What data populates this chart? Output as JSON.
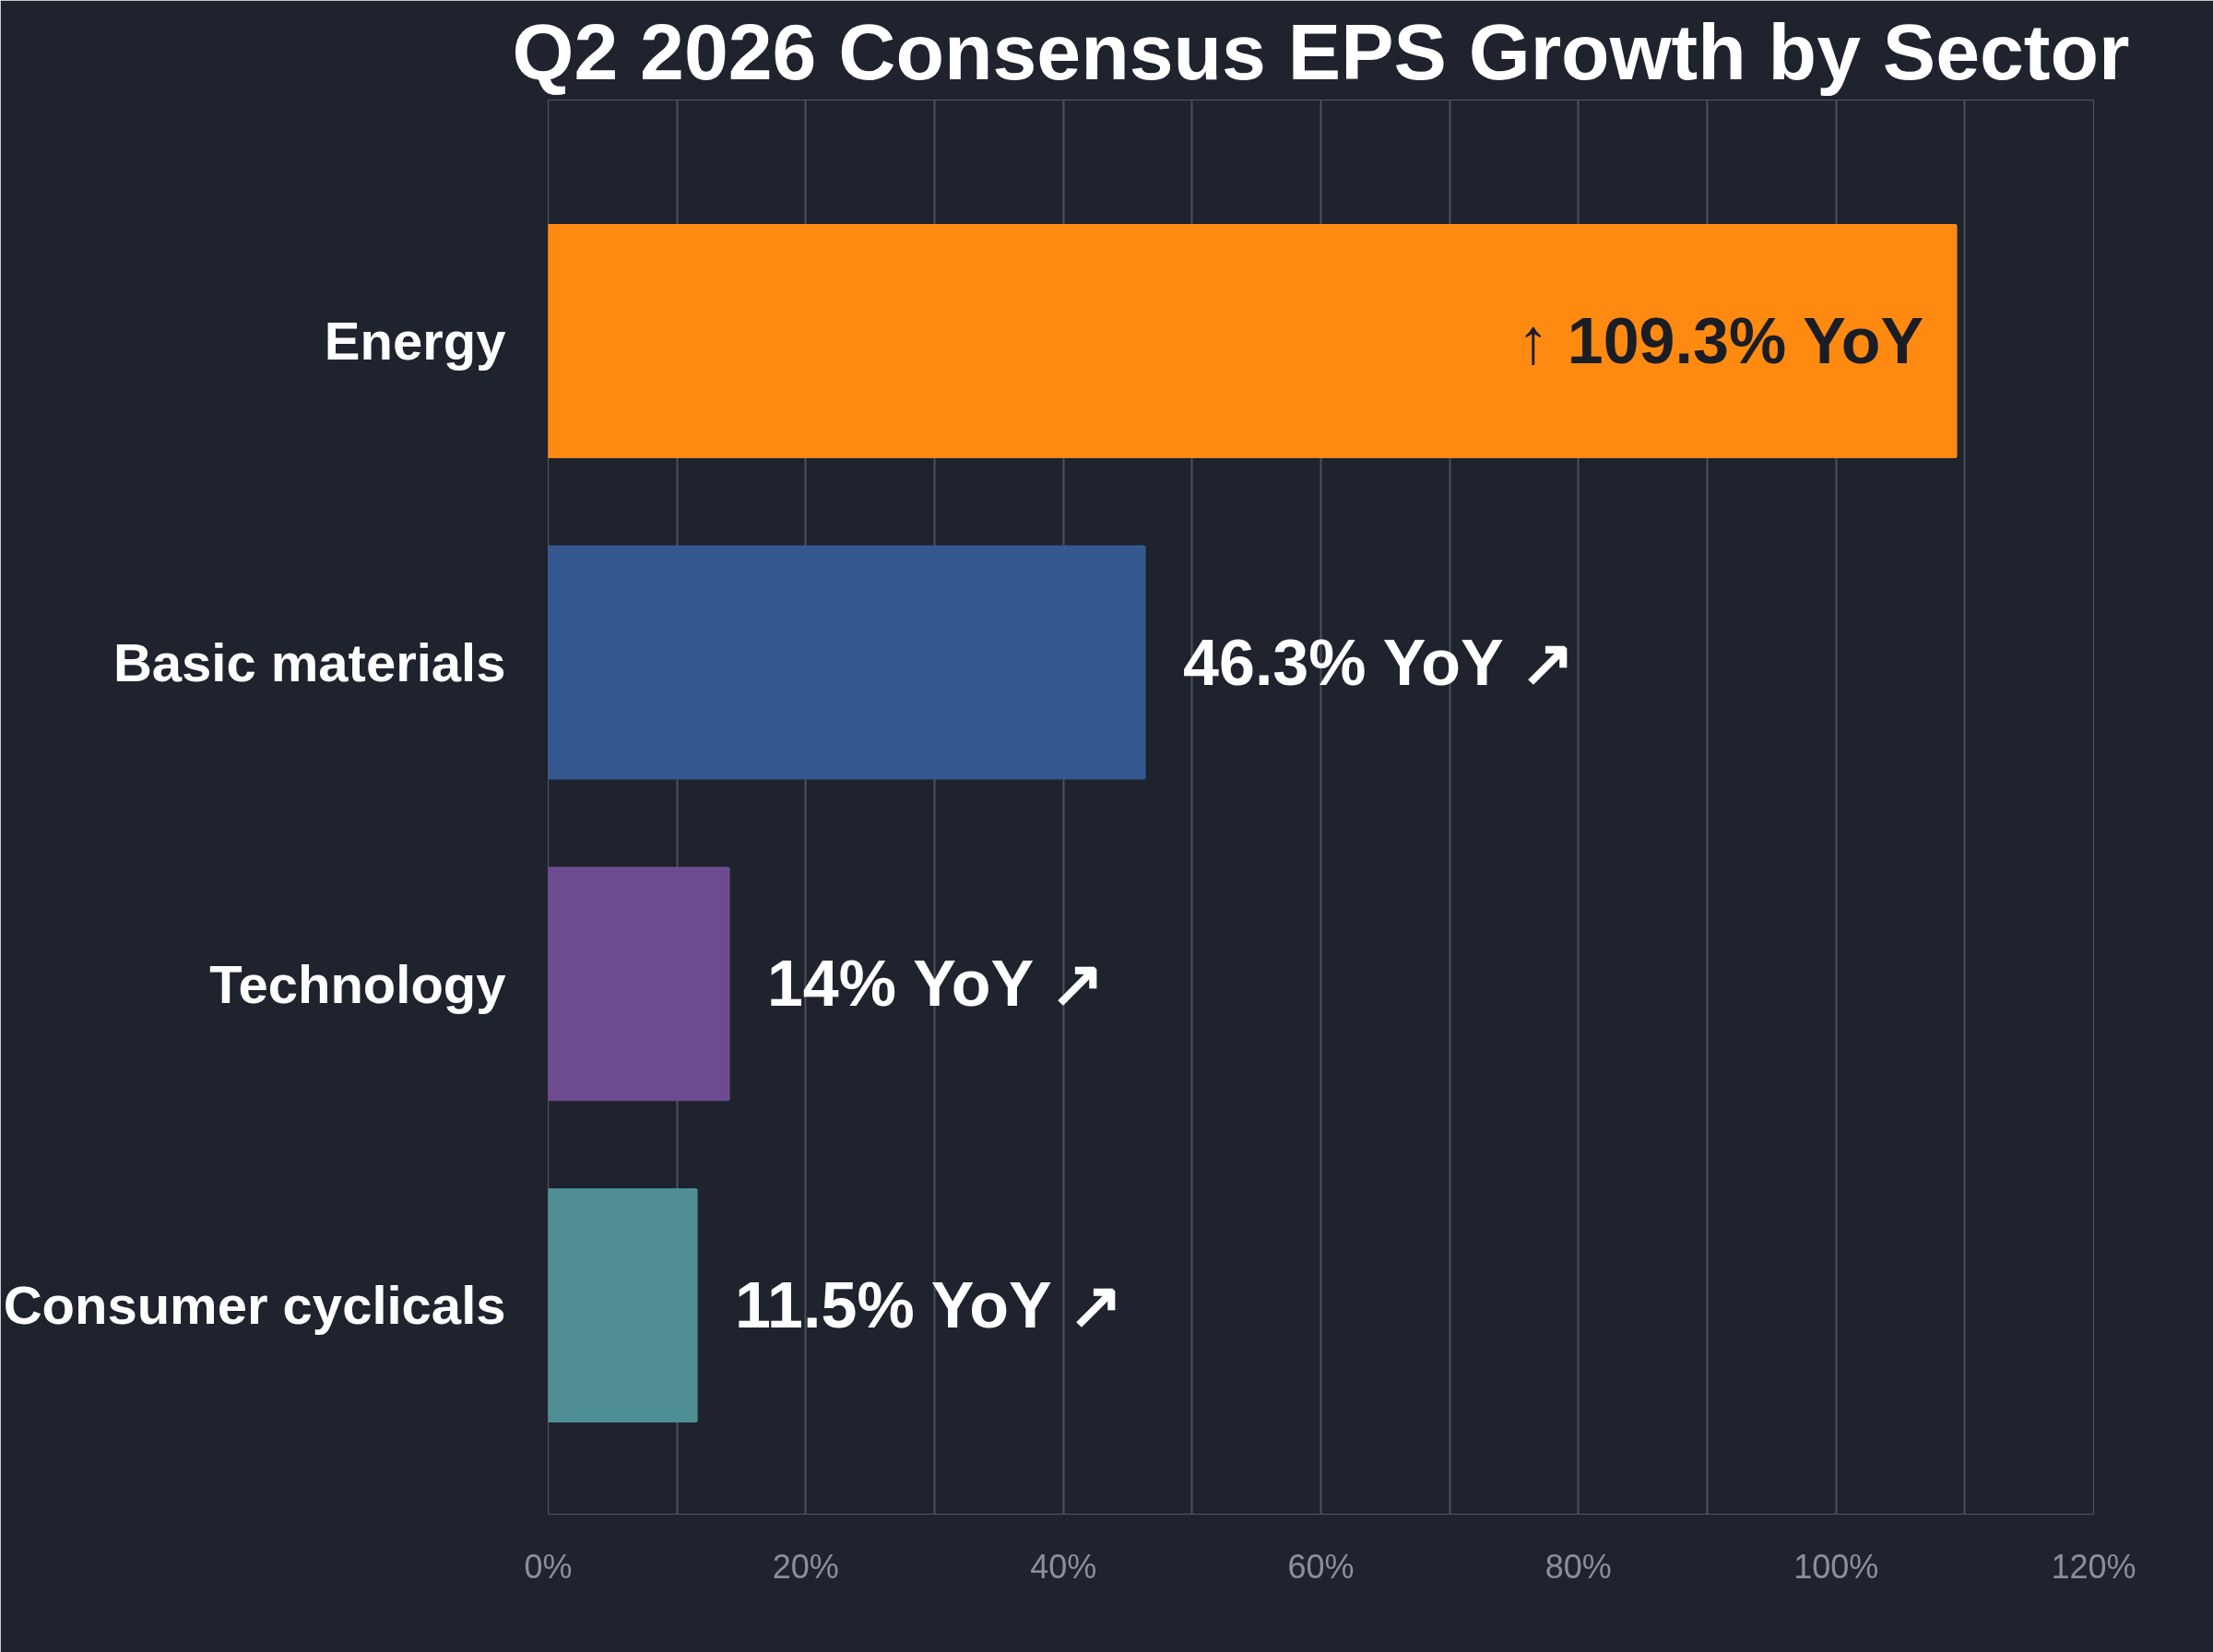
{
  "chart_data": {
    "type": "bar",
    "orientation": "horizontal",
    "title": "Q2 2026 Consensus EPS Growth by Sector",
    "categories": [
      "Energy",
      "Basic materials",
      "Technology",
      "Consumer cyclicals"
    ],
    "values": [
      109.3,
      46.3,
      14,
      11.5
    ],
    "colors": [
      "#ff8a12",
      "#35588f",
      "#6e4b90",
      "#4f8e94"
    ],
    "value_labels": [
      "↑ 109.3% YoY",
      "46.3% YoY ↗",
      "14% YoY ↗",
      "11.5% YoY ↗"
    ],
    "xlim": [
      0,
      120
    ],
    "xticks": [
      {
        "value": 0,
        "label": "0%"
      },
      {
        "value": 10,
        "label": null
      },
      {
        "value": 20,
        "label": "20%"
      },
      {
        "value": 30,
        "label": null
      },
      {
        "value": 40,
        "label": "40%"
      },
      {
        "value": 50,
        "label": null
      },
      {
        "value": 60,
        "label": "60%"
      },
      {
        "value": 70,
        "label": null
      },
      {
        "value": 80,
        "label": "80%"
      },
      {
        "value": 90,
        "label": null
      },
      {
        "value": 100,
        "label": "100%"
      },
      {
        "value": 110,
        "label": null
      },
      {
        "value": 120,
        "label": "120%"
      }
    ],
    "grid": "x"
  }
}
